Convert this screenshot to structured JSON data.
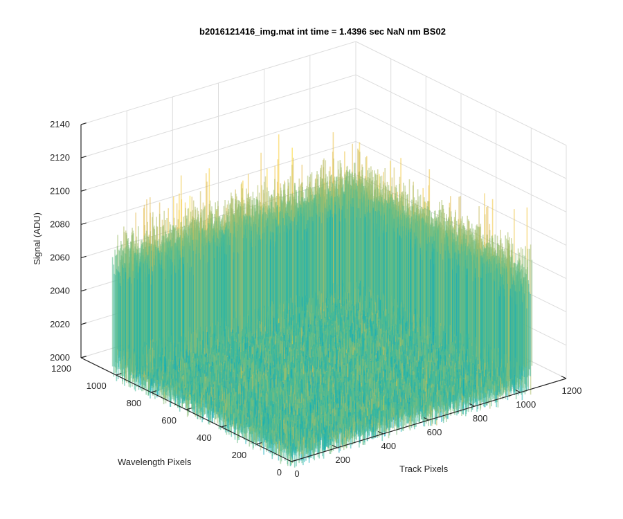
{
  "chart_data": {
    "type": "surface",
    "title": "b2016121416_img.mat int time = 1.4396 sec  NaN nm BS02",
    "xlabel": "Track Pixels",
    "ylabel": "Wavelength Pixels",
    "zlabel": "Signal (ADU)",
    "xlim": [
      0,
      1200
    ],
    "ylim": [
      0,
      1200
    ],
    "zlim": [
      2000,
      2140
    ],
    "x_ticks": [
      "0",
      "200",
      "400",
      "600",
      "800",
      "1000",
      "1200"
    ],
    "y_ticks": [
      "0",
      "200",
      "400",
      "600",
      "800",
      "1000",
      "1200"
    ],
    "z_ticks": [
      "2000",
      "2020",
      "2040",
      "2060",
      "2080",
      "2100",
      "2120",
      "2140"
    ],
    "data_extent": {
      "x": [
        0,
        1050
      ],
      "y": [
        0,
        1020
      ]
    },
    "z_typical_range": [
      2020,
      2090
    ],
    "z_peak_max": 2130,
    "colormap": "parula",
    "grid": true
  }
}
